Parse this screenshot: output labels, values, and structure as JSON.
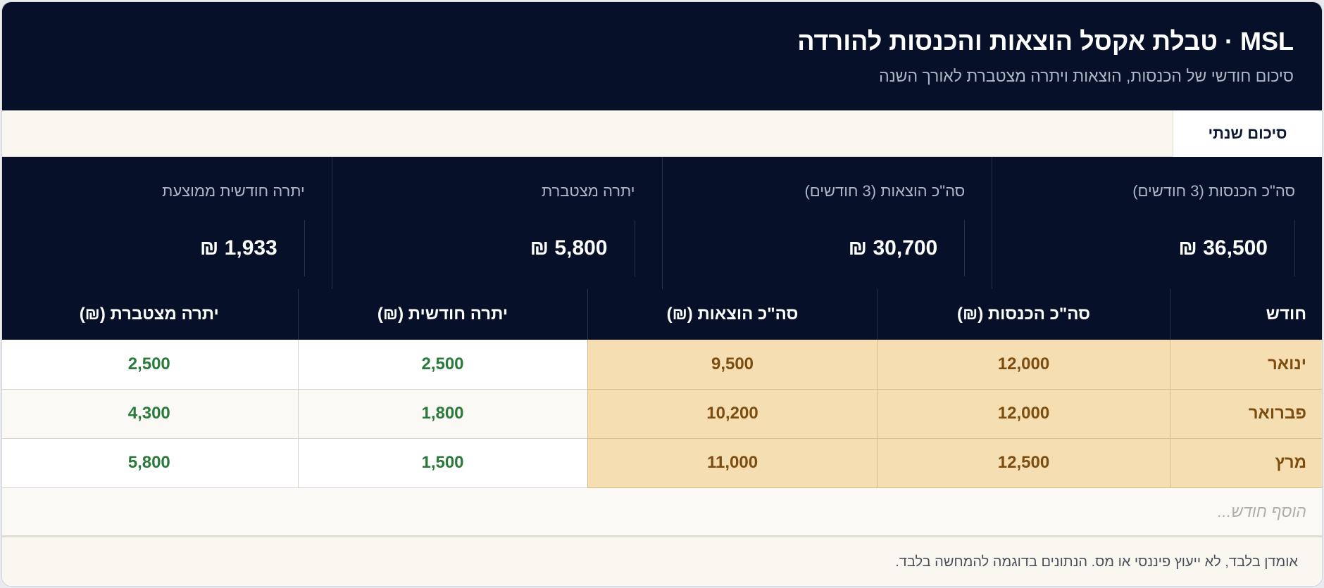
{
  "header": {
    "title": "MSL · טבלת אקסל הוצאות והכנסות להורדה",
    "subtitle": "סיכום חודשי של הכנסות, הוצאות ויתרה מצטברת לאורך השנה"
  },
  "tabs": [
    {
      "label": "סיכום שנתי",
      "active": true
    }
  ],
  "stats": [
    {
      "label": "סה\"כ הכנסות (3 חודשים)",
      "value": "36,500 ₪"
    },
    {
      "label": "סה\"כ הוצאות (3 חודשים)",
      "value": "30,700 ₪"
    },
    {
      "label": "יתרה מצטברת",
      "value": "5,800 ₪"
    },
    {
      "label": "יתרה חודשית ממוצעת",
      "value": "1,933 ₪"
    }
  ],
  "table": {
    "columns": [
      "חודש",
      "סה\"כ הכנסות (₪)",
      "סה\"כ הוצאות (₪)",
      "יתרה חודשית (₪)",
      "יתרה מצטברת (₪)"
    ],
    "rows": [
      {
        "month": "ינואר",
        "income": "12,000",
        "expenses": "9,500",
        "monthly": "2,500",
        "cumulative": "2,500"
      },
      {
        "month": "פברואר",
        "income": "12,000",
        "expenses": "10,200",
        "monthly": "1,800",
        "cumulative": "4,300"
      },
      {
        "month": "מרץ",
        "income": "12,500",
        "expenses": "11,000",
        "monthly": "1,500",
        "cumulative": "5,800"
      }
    ],
    "add_row_placeholder": "הוסף חודש..."
  },
  "footer": {
    "disclaimer": "אומדן בלבד, לא ייעוץ פיננסי או מס. הנתונים בדוגמה להמחשה בלבד."
  },
  "colors": {
    "navy": "#061129",
    "highlight": "#f5dfb2",
    "highlight_text": "#7d4d10",
    "positive": "#2a7a3a"
  }
}
